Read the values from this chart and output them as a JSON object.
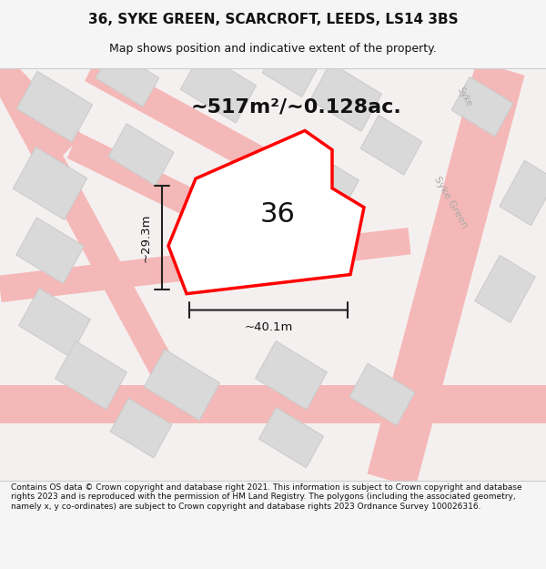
{
  "title": "36, SYKE GREEN, SCARCROFT, LEEDS, LS14 3BS",
  "subtitle": "Map shows position and indicative extent of the property.",
  "area_text": "~517m²/~0.128ac.",
  "number_label": "36",
  "width_label": "~40.1m",
  "height_label": "~29.3m",
  "footer": "Contains OS data © Crown copyright and database right 2021. This information is subject to Crown copyright and database rights 2023 and is reproduced with the permission of HM Land Registry. The polygons (including the associated geometry, namely x, y co-ordinates) are subject to Crown copyright and database rights 2023 Ordnance Survey 100026316.",
  "bg_color": "#f5f0f0",
  "map_bg": "#ffffff",
  "road_color": "#f5b8b8",
  "building_color": "#d9d9d9",
  "building_edge": "#cccccc",
  "plot_color": "#ff0000",
  "plot_fill": "#ffffff",
  "dim_color": "#222222",
  "text_color": "#333333",
  "title_color": "#111111"
}
